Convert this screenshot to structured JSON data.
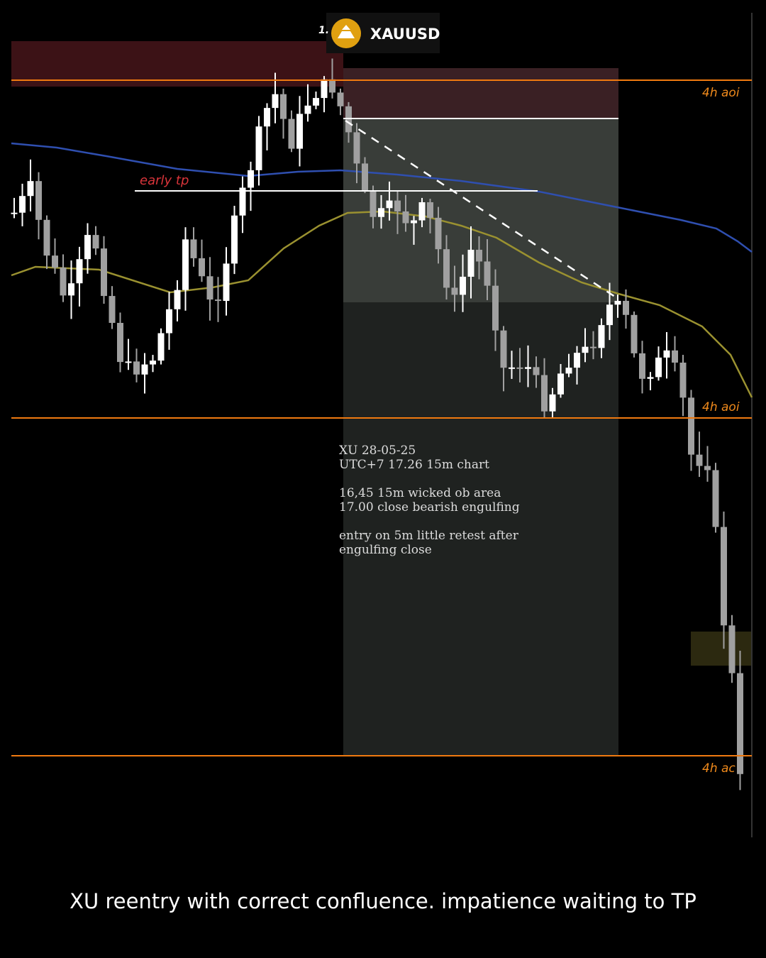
{
  "header": {
    "prefix": "1.",
    "symbol": "XAUUSD"
  },
  "levels": {
    "top": "4h aoi",
    "middle": "4h aoi",
    "bottom": "4h ac"
  },
  "early_tp": "early tp",
  "note": {
    "lines": [
      "XU 28-05-25",
      "UTC+7 17.26 15m chart",
      "16,45 15m wicked ob area",
      "17.00 close bearish engulfing",
      "entry on 5m little retest after",
      "engulfing close"
    ]
  },
  "caption": "XU reentry with correct confluence. impatience waiting to TP"
}
